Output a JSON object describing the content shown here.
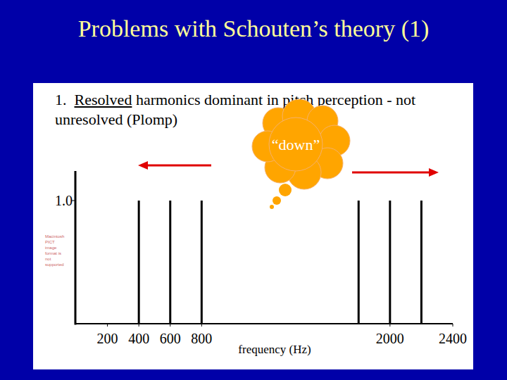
{
  "chart_data": {
    "type": "stem",
    "title": "Problems with Schouten’s theory (1)",
    "subtitle": "1. Resolved harmonics dominant in pitch perception - not unresolved (Plomp)",
    "x": [
      400,
      600,
      800,
      1800,
      2000,
      2200
    ],
    "values": [
      1,
      1,
      1,
      1,
      1,
      1
    ],
    "color": "#000000",
    "xlim": [
      0,
      2400
    ],
    "ylim": [
      0,
      1.24
    ],
    "xticks": [
      200,
      400,
      600,
      800,
      2000,
      2400
    ],
    "yticks": [
      {
        "value": 1,
        "label": "1.0"
      }
    ],
    "x_label": "frequency (Hz)",
    "annotations": [
      "“down”",
      "Macintosh PICT image format is not supported"
    ]
  }
}
